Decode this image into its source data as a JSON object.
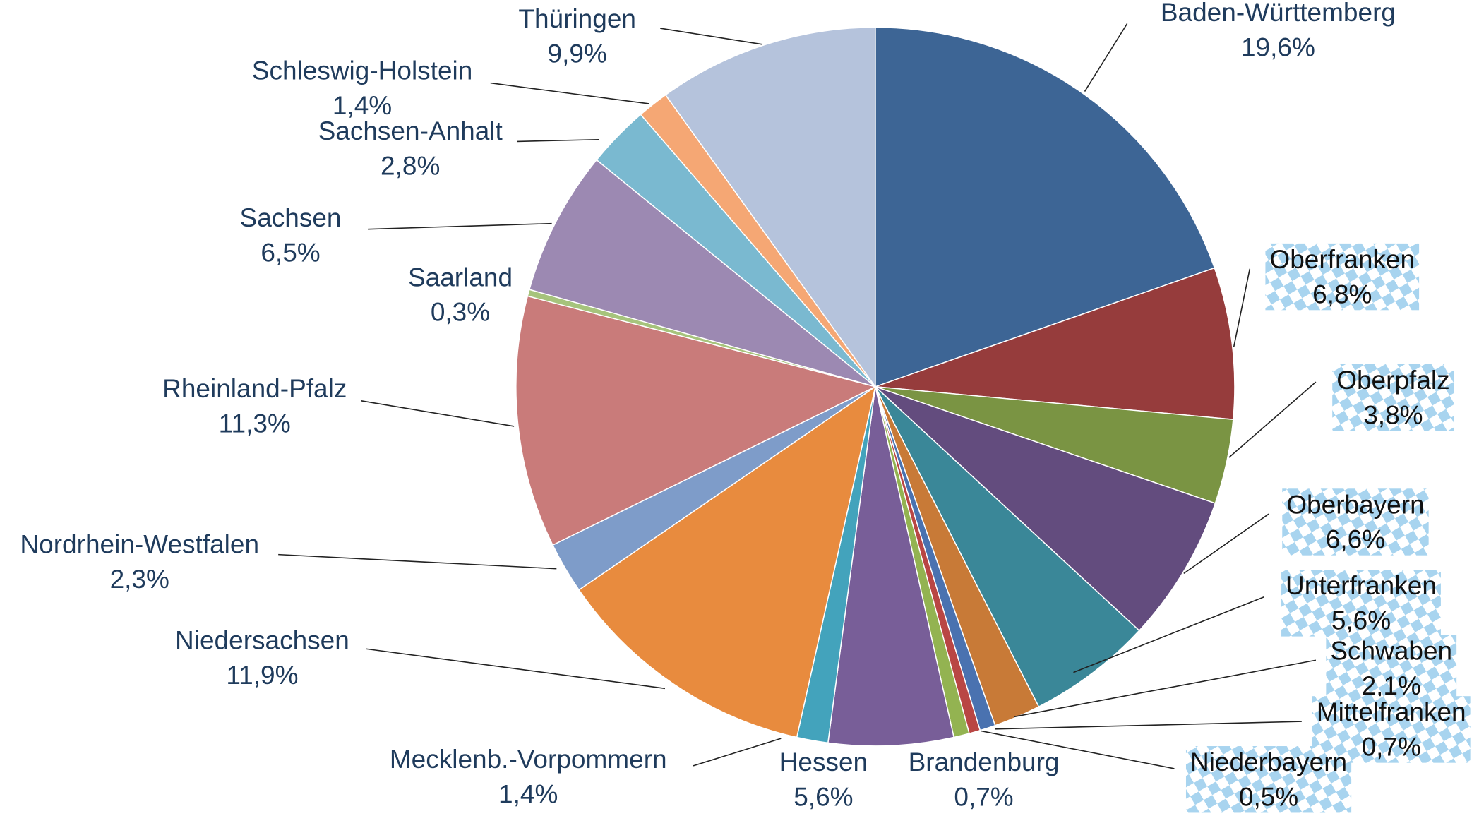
{
  "chart_data": {
    "type": "pie",
    "categories": [
      "Baden-Württemberg",
      "Oberfranken",
      "Oberpfalz",
      "Oberbayern",
      "Unterfranken",
      "Schwaben",
      "Mittelfranken",
      "Niederbayern",
      "Brandenburg",
      "Hessen",
      "Mecklenb.-Vorpommern",
      "Niedersachsen",
      "Nordrhein-Westfalen",
      "Rheinland-Pfalz",
      "Saarland",
      "Sachsen",
      "Sachsen-Anhalt",
      "Schleswig-Holstein",
      "Thüringen"
    ],
    "values": [
      19.6,
      6.8,
      3.8,
      6.6,
      5.6,
      2.1,
      0.7,
      0.5,
      0.7,
      5.6,
      1.4,
      11.9,
      2.3,
      11.3,
      0.3,
      6.5,
      2.8,
      1.4,
      9.9
    ],
    "value_labels": [
      "19,6%",
      "6,8%",
      "3,8%",
      "6,6%",
      "5,6%",
      "2,1%",
      "0,7%",
      "0,5%",
      "0,7%",
      "5,6%",
      "1,4%",
      "11,9%",
      "2,3%",
      "11,3%",
      "0,3%",
      "6,5%",
      "2,8%",
      "1,4%",
      "9,9%"
    ],
    "colors": [
      "#3d6595",
      "#963c3c",
      "#7a9443",
      "#634c7e",
      "#3a8798",
      "#c87a37",
      "#4a72b0",
      "#b94644",
      "#93b351",
      "#785e98",
      "#43a3bc",
      "#e88b3e",
      "#7e9cc9",
      "#c97b7a",
      "#a6c37c",
      "#9c89b2",
      "#7ab9d0",
      "#f5a774",
      "#b5c3dc"
    ]
  }
}
